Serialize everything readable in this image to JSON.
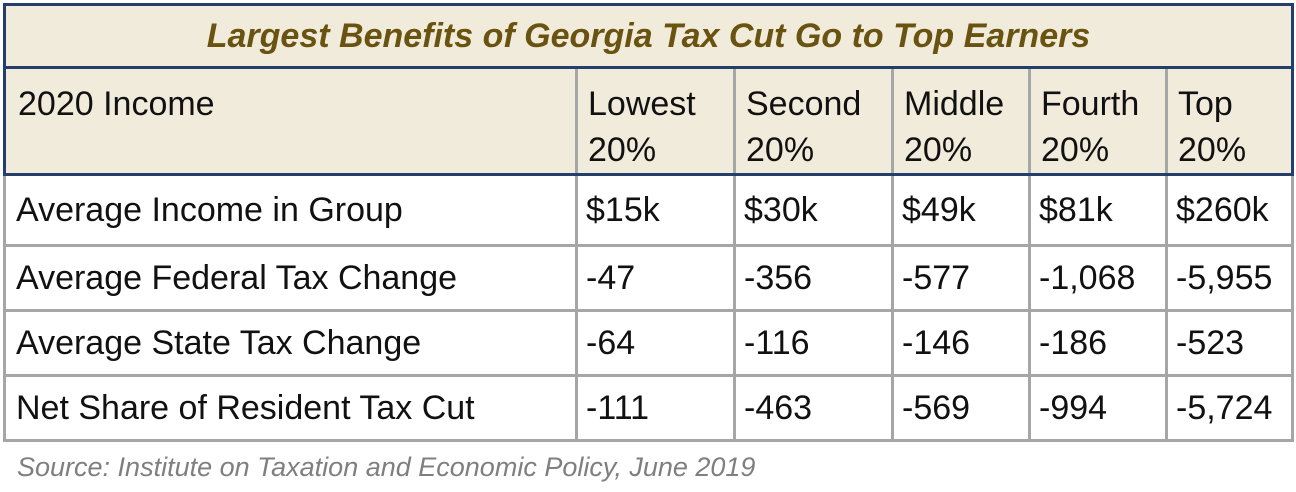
{
  "title": "Largest Benefits of Georgia Tax Cut Go to Top Earners",
  "header": {
    "label": "2020 Income",
    "columns": [
      "Lowest 20%",
      "Second 20%",
      "Middle 20%",
      "Fourth 20%",
      "Top 20%"
    ]
  },
  "rows": [
    {
      "label": "Average Income in Group",
      "values": [
        "$15k",
        "$30k",
        "$49k",
        "$81k",
        "$260k"
      ]
    },
    {
      "label": "Average Federal Tax Change",
      "values": [
        "-47",
        "-356",
        "-577",
        "-1,068",
        "-5,955"
      ]
    },
    {
      "label": "Average State Tax Change",
      "values": [
        "-64",
        "-116",
        "-146",
        "-186",
        "-523"
      ]
    },
    {
      "label": "Net Share of Resident Tax Cut",
      "values": [
        "-111",
        "-463",
        "-569",
        "-994",
        "-5,724"
      ]
    }
  ],
  "source": "Source: Institute on Taxation and Economic Policy, June 2019",
  "colors": {
    "title_text": "#6a5310",
    "header_bg": "#f1ebdb",
    "border_dark": "#243f6b",
    "border_grid": "#a6a6a6",
    "source_text": "#7f7f7f"
  }
}
